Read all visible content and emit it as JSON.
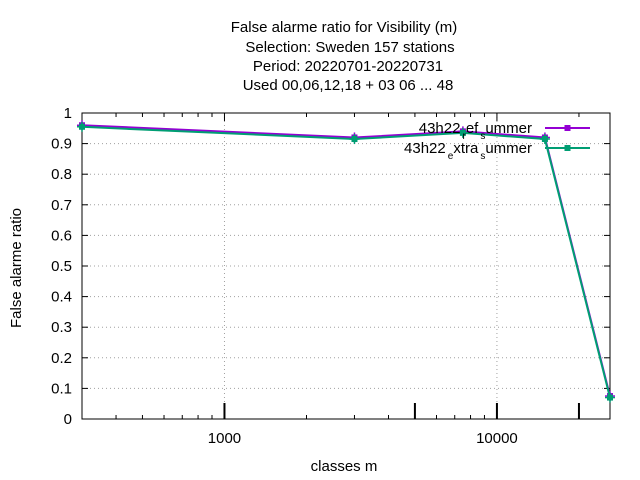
{
  "chart_data": {
    "type": "line",
    "title_lines": [
      "False alarme ratio  for Visibility (m)",
      "Selection: Sweden     157 stations",
      "Period: 20220701-20220731",
      "Used  00,06,12,18  + 03 06 ... 48"
    ],
    "xlabel": "classes m",
    "ylabel": "False alarme ratio",
    "x_scale": "log",
    "xlim": [
      300,
      26000
    ],
    "ylim": [
      0,
      1
    ],
    "x_tick_labels": [
      "1000",
      "10000"
    ],
    "x_tick_values": [
      1000,
      10000
    ],
    "y_tick_values": [
      0,
      0.1,
      0.2,
      0.3,
      0.4,
      0.5,
      0.6,
      0.7,
      0.8,
      0.9,
      1
    ],
    "y_tick_labels": [
      "0",
      "0.1",
      "0.2",
      "0.3",
      "0.4",
      "0.5",
      "0.6",
      "0.7",
      "0.8",
      "0.9",
      "1"
    ],
    "grid": true,
    "legend_position": "top-right",
    "x_markers": [
      1000,
      5000,
      10000,
      20000
    ],
    "series": [
      {
        "name_parts": [
          "43h22",
          "r",
          "ef",
          "s",
          "ummer"
        ],
        "color": "#9400d3",
        "x": [
          300,
          3000,
          7500,
          15000,
          26000
        ],
        "y": [
          0.96,
          0.92,
          0.94,
          0.92,
          0.075
        ]
      },
      {
        "name_parts": [
          "43h22",
          "e",
          "xtra",
          "s",
          "ummer"
        ],
        "color": "#009e73",
        "x": [
          300,
          3000,
          7500,
          15000,
          26000
        ],
        "y": [
          0.955,
          0.915,
          0.935,
          0.915,
          0.07
        ]
      }
    ]
  }
}
